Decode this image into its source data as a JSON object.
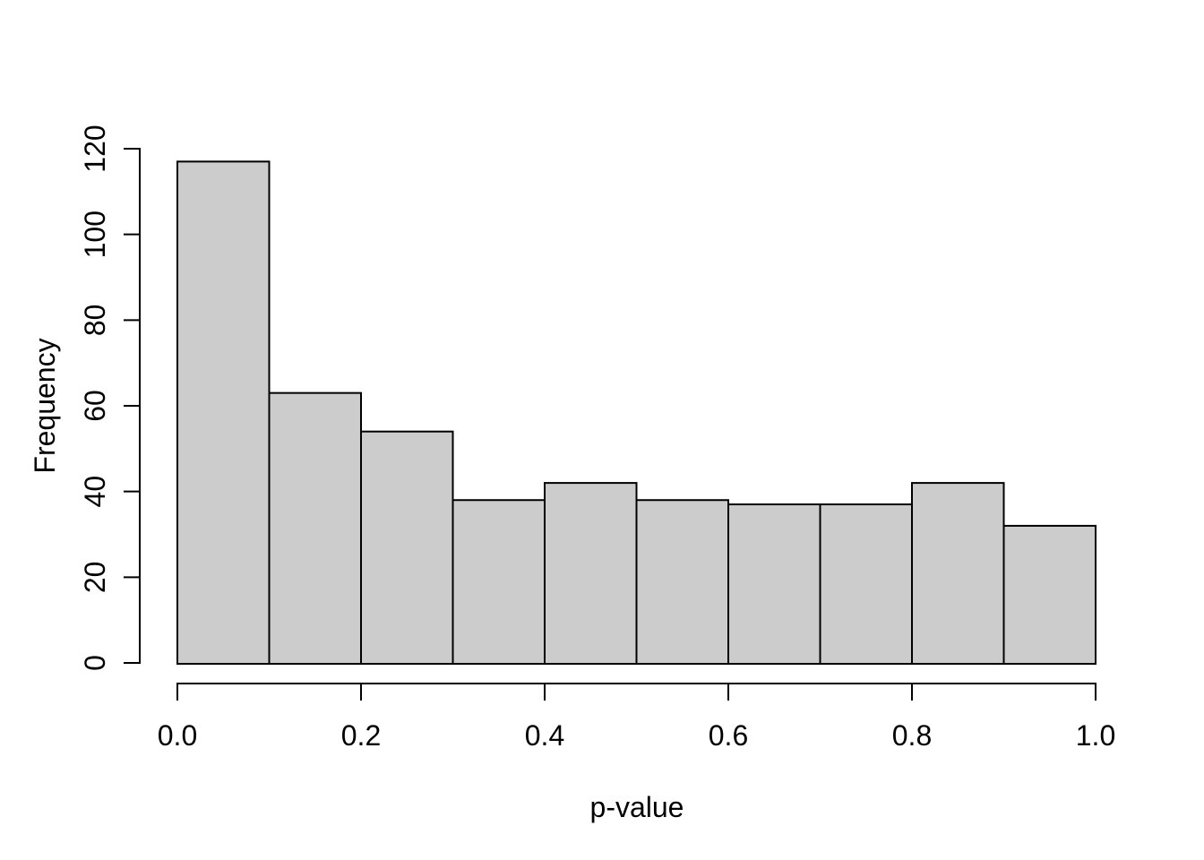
{
  "chart_data": {
    "type": "bar",
    "subtype": "histogram",
    "title": "",
    "xlabel": "p-value",
    "ylabel": "Frequency",
    "bin_width": 0.1,
    "bin_edges": [
      0.0,
      0.1,
      0.2,
      0.3,
      0.4,
      0.5,
      0.6,
      0.7,
      0.8,
      0.9,
      1.0
    ],
    "categories": [
      "0.0-0.1",
      "0.1-0.2",
      "0.2-0.3",
      "0.3-0.4",
      "0.4-0.5",
      "0.5-0.6",
      "0.6-0.7",
      "0.7-0.8",
      "0.8-0.9",
      "0.9-1.0"
    ],
    "values": [
      117,
      63,
      54,
      38,
      42,
      38,
      37,
      37,
      42,
      32
    ],
    "total_count": 500,
    "xlim": [
      0.0,
      1.0
    ],
    "ylim": [
      0,
      120
    ],
    "x_ticks": {
      "values": [
        0.0,
        0.2,
        0.4,
        0.6,
        0.8,
        1.0
      ],
      "labels": [
        "0.0",
        "0.2",
        "0.4",
        "0.6",
        "0.8",
        "1.0"
      ]
    },
    "y_ticks": {
      "values": [
        0,
        20,
        40,
        60,
        80,
        100,
        120
      ],
      "labels": [
        "0",
        "20",
        "40",
        "60",
        "80",
        "100",
        "120"
      ]
    },
    "grid": false,
    "legend": null,
    "colors": {
      "bar_fill": "#cccccc",
      "bar_stroke": "#000000",
      "axis": "#000000",
      "text": "#000000",
      "background": "#ffffff"
    }
  }
}
